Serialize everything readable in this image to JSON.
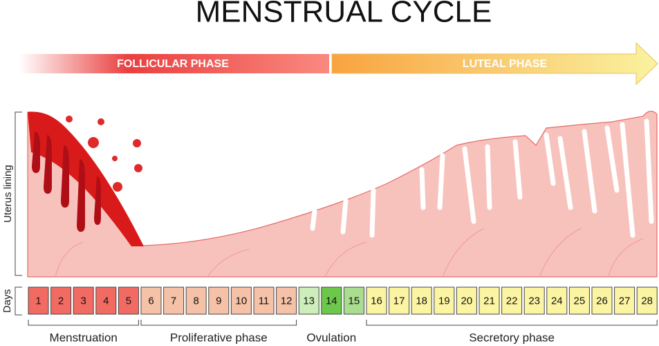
{
  "title": "MENSTRUAL CYCLE",
  "phases": {
    "follicular": "FOLLICULAR PHASE",
    "luteal": "LUTEAL PHASE"
  },
  "side_labels": {
    "lining": "Uterus lining",
    "days": "Days"
  },
  "day_groups": [
    {
      "label": "Menstruation",
      "days": [
        1,
        2,
        3,
        4,
        5
      ]
    },
    {
      "label": "Proliferative phase",
      "days": [
        6,
        7,
        8,
        9,
        10,
        11,
        12
      ]
    },
    {
      "label": "Ovulation",
      "days": [
        13,
        14,
        15
      ]
    },
    {
      "label": "Secretory phase",
      "days": [
        16,
        17,
        18,
        19,
        20,
        21,
        22,
        23,
        24,
        25,
        26,
        27,
        28
      ]
    }
  ]
}
